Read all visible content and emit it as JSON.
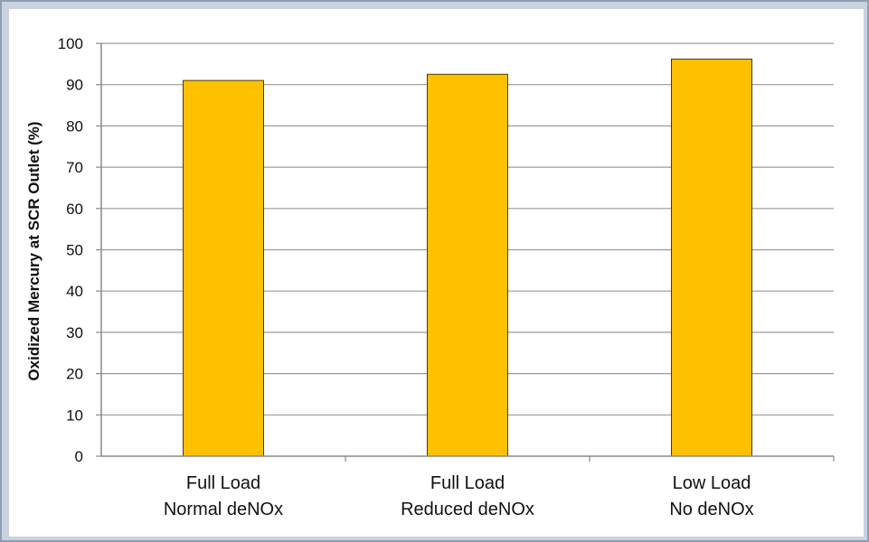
{
  "chart_data": {
    "type": "bar",
    "title": "",
    "xlabel": "",
    "ylabel": "Oxidized Mercury at SCR Outlet (%)",
    "categories": [
      [
        "Full Load",
        "Normal deNOx"
      ],
      [
        "Full Load",
        "Reduced deNOx"
      ],
      [
        "Low Load",
        "No deNOx"
      ]
    ],
    "values": [
      91,
      92.5,
      96.2
    ],
    "ylim": [
      0,
      100
    ],
    "yticks": [
      0,
      10,
      20,
      30,
      40,
      50,
      60,
      70,
      80,
      90,
      100
    ],
    "grid": true,
    "legend": "none",
    "colors": {
      "bar_fill": "#FFC000",
      "bar_stroke": "#4a3a00",
      "grid": "#9a9a9a",
      "axis": "#8a8a8a",
      "frame": "#8e9db3",
      "background": "#c9d3e0"
    }
  }
}
